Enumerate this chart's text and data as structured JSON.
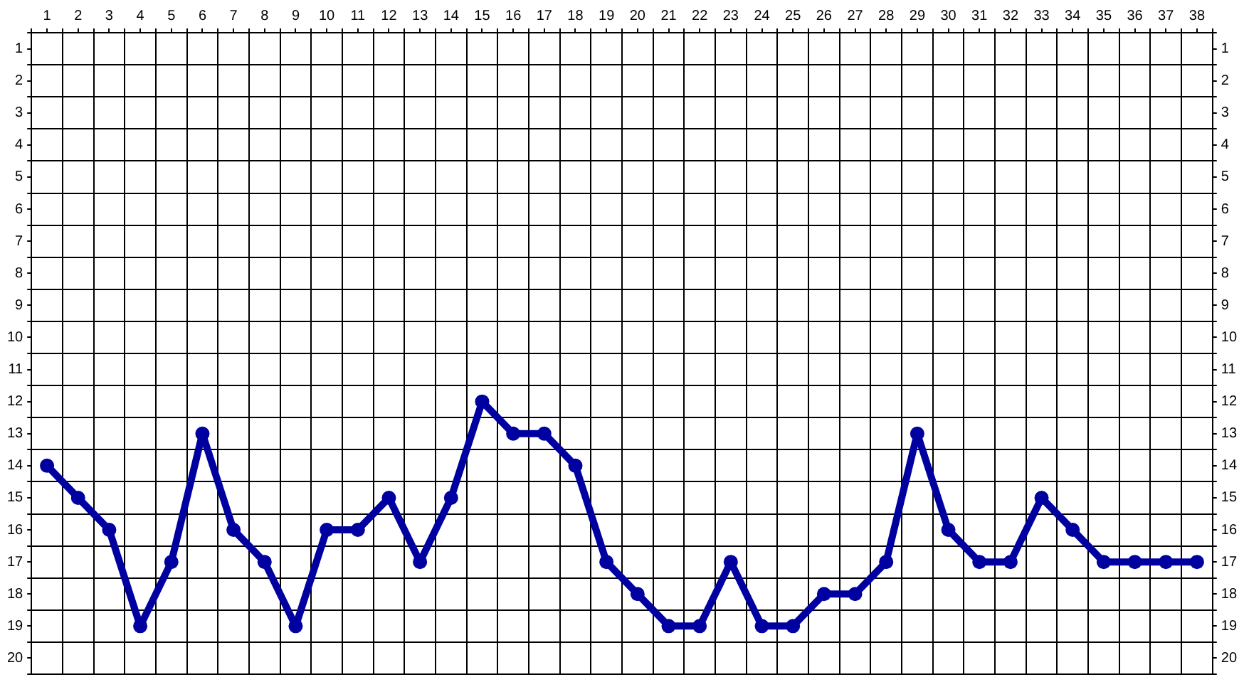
{
  "chart_data": {
    "type": "line",
    "x": [
      1,
      2,
      3,
      4,
      5,
      6,
      7,
      8,
      9,
      10,
      11,
      12,
      13,
      14,
      15,
      16,
      17,
      18,
      19,
      20,
      21,
      22,
      23,
      24,
      25,
      26,
      27,
      28,
      29,
      30,
      31,
      32,
      33,
      34,
      35,
      36,
      37,
      38
    ],
    "series": [
      {
        "color": "#0000a0",
        "values": [
          14,
          15,
          16,
          19,
          17,
          13,
          16,
          17,
          19,
          16,
          16,
          15,
          17,
          15,
          12,
          13,
          13,
          14,
          17,
          18,
          19,
          19,
          17,
          19,
          19,
          18,
          18,
          17,
          13,
          16,
          17,
          17,
          15,
          16,
          17,
          17,
          17,
          17
        ]
      }
    ],
    "xlim": [
      0.5,
      38.5
    ],
    "ylim": [
      20.5,
      0.5
    ],
    "y2lim": [
      20.5,
      0.5
    ],
    "xticks": [
      {
        "value": 0.5,
        "label": null
      },
      1,
      {
        "value": 1.5,
        "label": null
      },
      2,
      {
        "value": 2.5,
        "label": null
      },
      3,
      {
        "value": 3.5,
        "label": null
      },
      4,
      {
        "value": 4.5,
        "label": null
      },
      5,
      {
        "value": 5.5,
        "label": null
      },
      6,
      {
        "value": 6.5,
        "label": null
      },
      7,
      {
        "value": 7.5,
        "label": null
      },
      8,
      {
        "value": 8.5,
        "label": null
      },
      9,
      {
        "value": 9.5,
        "label": null
      },
      10,
      {
        "value": 10.5,
        "label": null
      },
      11,
      {
        "value": 11.5,
        "label": null
      },
      12,
      {
        "value": 12.5,
        "label": null
      },
      13,
      {
        "value": 13.5,
        "label": null
      },
      14,
      {
        "value": 14.5,
        "label": null
      },
      15,
      {
        "value": 15.5,
        "label": null
      },
      16,
      {
        "value": 16.5,
        "label": null
      },
      17,
      {
        "value": 17.5,
        "label": null
      },
      18,
      {
        "value": 18.5,
        "label": null
      },
      19,
      {
        "value": 19.5,
        "label": null
      },
      20,
      {
        "value": 20.5,
        "label": null
      },
      21,
      {
        "value": 21.5,
        "label": null
      },
      22,
      {
        "value": 22.5,
        "label": null
      },
      23,
      {
        "value": 23.5,
        "label": null
      },
      24,
      {
        "value": 24.5,
        "label": null
      },
      25,
      {
        "value": 25.5,
        "label": null
      },
      26,
      {
        "value": 26.5,
        "label": null
      },
      27,
      {
        "value": 27.5,
        "label": null
      },
      28,
      {
        "value": 28.5,
        "label": null
      },
      29,
      {
        "value": 29.5,
        "label": null
      },
      30,
      {
        "value": 30.5,
        "label": null
      },
      31,
      {
        "value": 31.5,
        "label": null
      },
      32,
      {
        "value": 32.5,
        "label": null
      },
      33,
      {
        "value": 33.5,
        "label": null
      },
      34,
      {
        "value": 34.5,
        "label": null
      },
      35,
      {
        "value": 35.5,
        "label": null
      },
      36,
      {
        "value": 36.5,
        "label": null
      },
      37,
      {
        "value": 37.5,
        "label": null
      },
      38,
      {
        "value": 38.5,
        "label": null
      }
    ],
    "yticks": [
      {
        "value": 0.5,
        "label": null
      },
      1,
      {
        "value": 1.5,
        "label": null
      },
      2,
      {
        "value": 2.5,
        "label": null
      },
      3,
      {
        "value": 3.5,
        "label": null
      },
      4,
      {
        "value": 4.5,
        "label": null
      },
      5,
      {
        "value": 5.5,
        "label": null
      },
      6,
      {
        "value": 6.5,
        "label": null
      },
      7,
      {
        "value": 7.5,
        "label": null
      },
      8,
      {
        "value": 8.5,
        "label": null
      },
      9,
      {
        "value": 9.5,
        "label": null
      },
      10,
      {
        "value": 10.5,
        "label": null
      },
      11,
      {
        "value": 11.5,
        "label": null
      },
      12,
      {
        "value": 12.5,
        "label": null
      },
      13,
      {
        "value": 13.5,
        "label": null
      },
      14,
      {
        "value": 14.5,
        "label": null
      },
      15,
      {
        "value": 15.5,
        "label": null
      },
      16,
      {
        "value": 16.5,
        "label": null
      },
      17,
      {
        "value": 17.5,
        "label": null
      },
      18,
      {
        "value": 18.5,
        "label": null
      },
      19,
      {
        "value": 19.5,
        "label": null
      },
      20,
      {
        "value": 20.5,
        "label": null
      }
    ],
    "y2ticks": [
      {
        "value": 0.5,
        "label": null
      },
      1,
      {
        "value": 1.5,
        "label": null
      },
      2,
      {
        "value": 2.5,
        "label": null
      },
      3,
      {
        "value": 3.5,
        "label": null
      },
      4,
      {
        "value": 4.5,
        "label": null
      },
      5,
      {
        "value": 5.5,
        "label": null
      },
      6,
      {
        "value": 6.5,
        "label": null
      },
      7,
      {
        "value": 7.5,
        "label": null
      },
      8,
      {
        "value": 8.5,
        "label": null
      },
      9,
      {
        "value": 9.5,
        "label": null
      },
      10,
      {
        "value": 10.5,
        "label": null
      },
      11,
      {
        "value": 11.5,
        "label": null
      },
      12,
      {
        "value": 12.5,
        "label": null
      },
      13,
      {
        "value": 13.5,
        "label": null
      },
      14,
      {
        "value": 14.5,
        "label": null
      },
      15,
      {
        "value": 15.5,
        "label": null
      },
      16,
      {
        "value": 16.5,
        "label": null
      },
      17,
      {
        "value": 17.5,
        "label": null
      },
      18,
      {
        "value": 18.5,
        "label": null
      },
      19,
      {
        "value": 19.5,
        "label": null
      },
      20,
      {
        "value": 20.5,
        "label": null
      }
    ],
    "grid": true,
    "legend": false,
    "marker": "circle",
    "line_style": "solid"
  }
}
